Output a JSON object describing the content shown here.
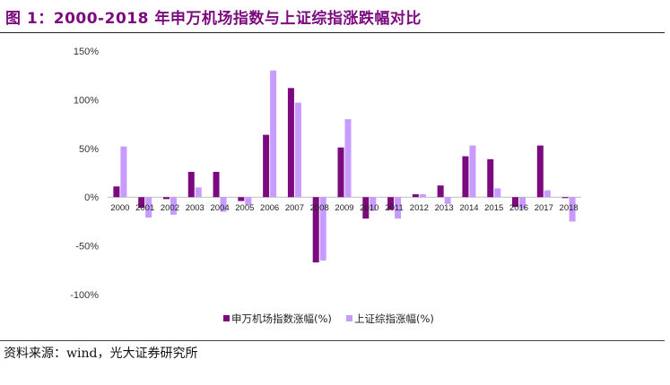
{
  "figure": {
    "title": "图 1：2000-2018 年申万机场指数与上证综指涨跌幅对比",
    "source": "资料来源：wind，光大证券研究所"
  },
  "colors": {
    "title": "#7b0a7e",
    "series_airport": "#7b0a7e",
    "series_sse": "#c79bff"
  },
  "chart_data": {
    "type": "bar",
    "categories": [
      "2000",
      "2001",
      "2002",
      "2003",
      "2004",
      "2005",
      "2006",
      "2007",
      "2008",
      "2009",
      "2010",
      "2011",
      "2012",
      "2013",
      "2014",
      "2015",
      "2016",
      "2017",
      "2018"
    ],
    "series": [
      {
        "name": "申万机场指数涨幅(%)",
        "values": [
          11,
          -11,
          -2,
          26,
          26,
          -4,
          64,
          112,
          -67,
          51,
          -22,
          -13,
          3,
          12,
          42,
          39,
          -10,
          53,
          -1
        ]
      },
      {
        "name": "上证综指涨幅(%)",
        "values": [
          52,
          -21,
          -18,
          10,
          -15,
          -8,
          130,
          97,
          -65,
          80,
          -14,
          -22,
          3,
          -7,
          53,
          9,
          -12,
          7,
          -25
        ]
      }
    ],
    "yticks": [
      "150%",
      "100%",
      "50%",
      "0%",
      "-50%",
      "-100%"
    ],
    "ytick_values": [
      150,
      100,
      50,
      0,
      -50,
      -100
    ],
    "ylim": [
      -100,
      150
    ],
    "xlabel": "",
    "ylabel": "",
    "grid": false,
    "legend_position": "bottom"
  }
}
